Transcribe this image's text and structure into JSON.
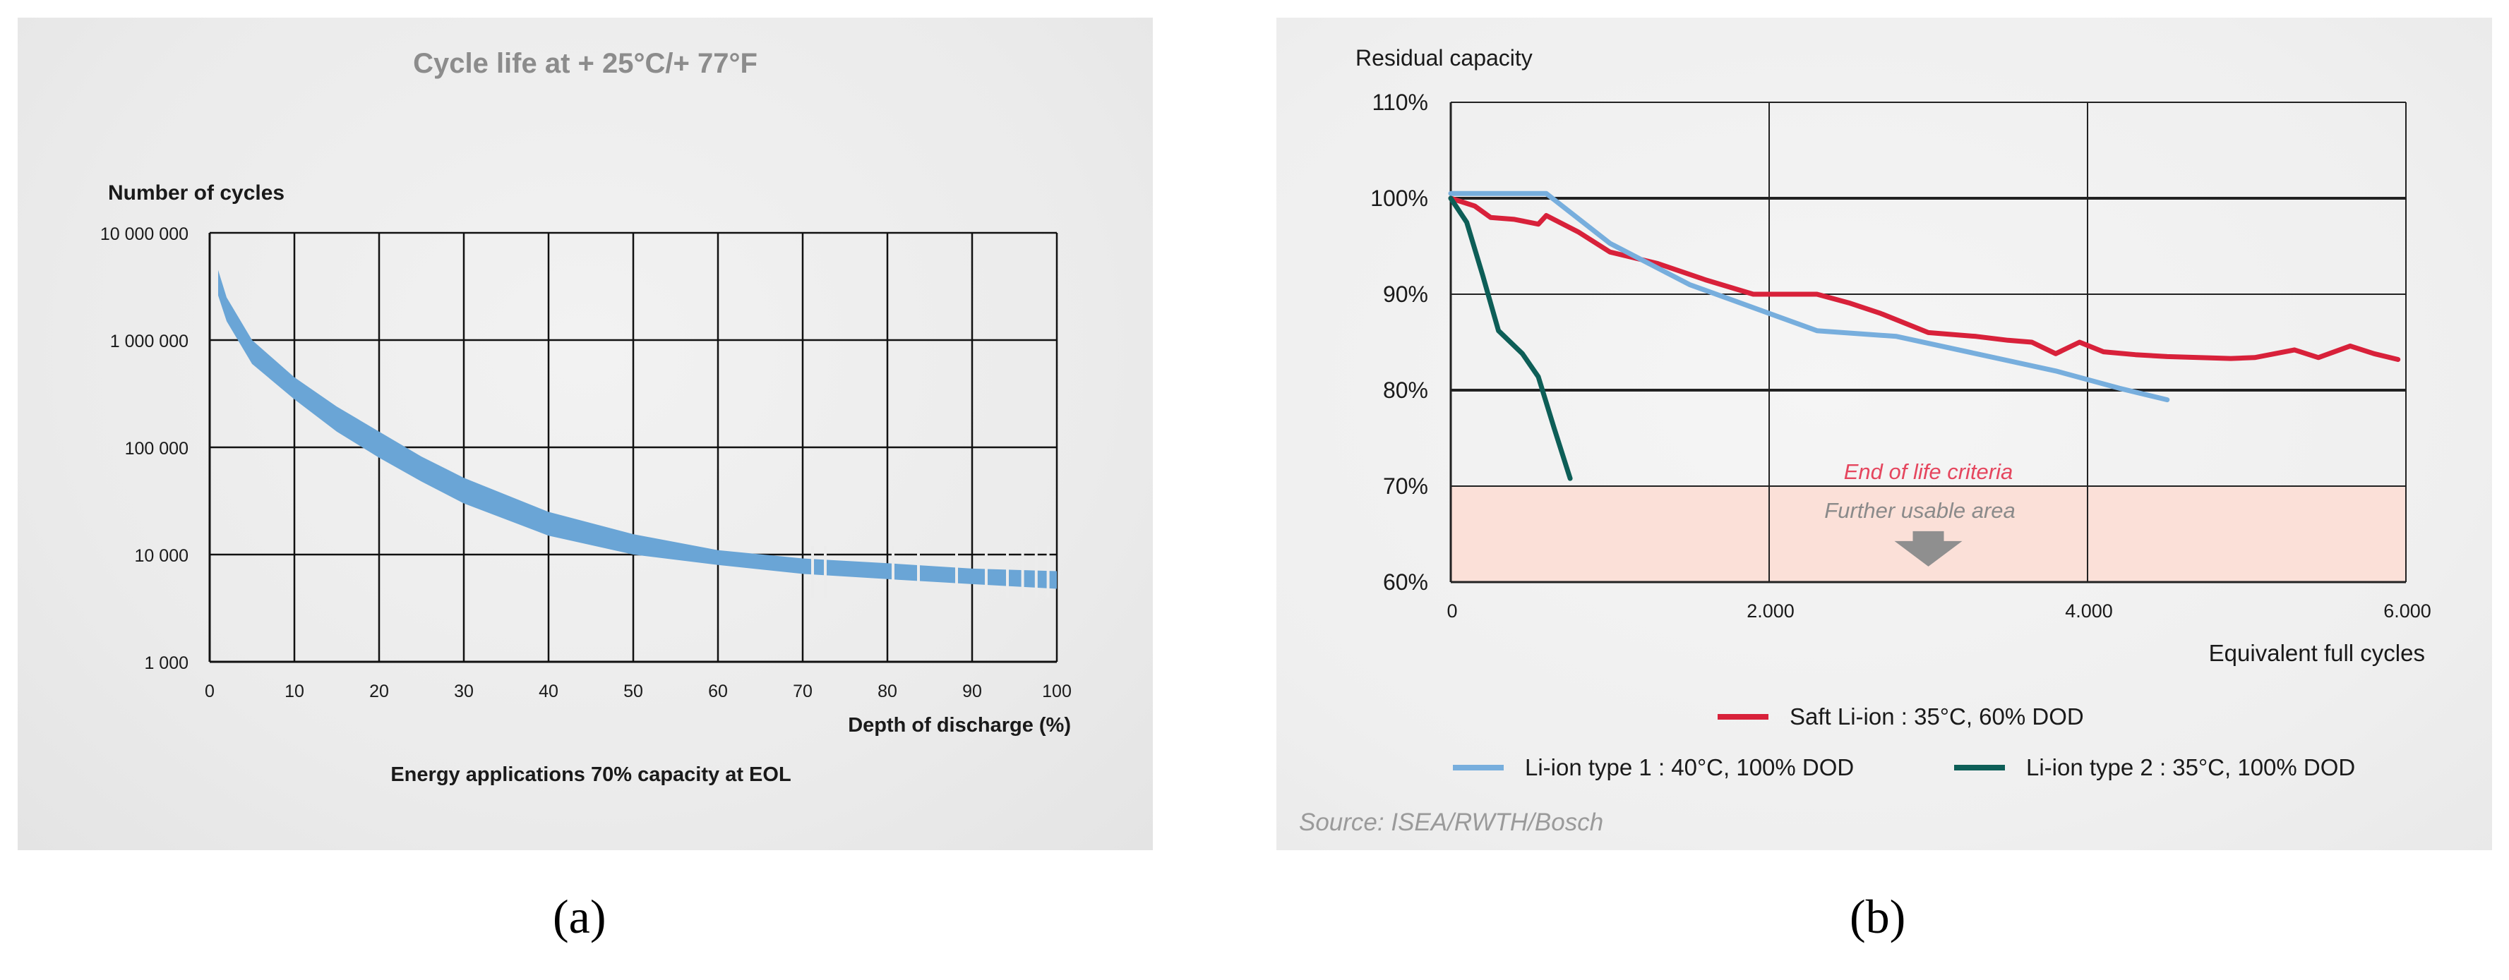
{
  "chart_data": [
    {
      "type": "area",
      "panel_label": "(a)",
      "title": "Cycle life at + 25°C/+ 77°F",
      "ylabel": "Number of cycles",
      "xlabel": "Depth of discharge (%)",
      "caption": "Energy applications 70% capacity at EOL",
      "xlim": [
        0,
        100
      ],
      "ylim": [
        1000,
        10000000
      ],
      "yscale": "log",
      "x_ticks": [
        0,
        10,
        20,
        30,
        40,
        50,
        60,
        70,
        80,
        90,
        100
      ],
      "x_tick_labels": [
        "0",
        "10",
        "20",
        "30",
        "40",
        "50",
        "60",
        "70",
        "80",
        "90",
        "100"
      ],
      "y_ticks": [
        1000,
        10000,
        100000,
        1000000,
        10000000
      ],
      "y_tick_labels": [
        "1 000",
        "10 000",
        "100 000",
        "1 000 000",
        "10 000 000"
      ],
      "grid": true,
      "color": "#6aa5d6",
      "band": {
        "x": [
          1,
          2,
          5,
          10,
          15,
          20,
          25,
          30,
          40,
          50,
          60,
          70,
          80,
          90,
          100
        ],
        "upper": [
          4500000,
          2500000,
          1000000,
          450000,
          240000,
          140000,
          82000,
          52000,
          25000,
          15500,
          11000,
          9200,
          8300,
          7400,
          7000
        ],
        "lower": [
          2600000,
          1500000,
          600000,
          280000,
          140000,
          80000,
          48000,
          30000,
          15000,
          10000,
          8000,
          6600,
          5900,
          5300,
          4800
        ]
      }
    },
    {
      "type": "line",
      "panel_label": "(b)",
      "ylabel": "Residual capacity",
      "xlabel": "Equivalent full cycles",
      "xlim": [
        0,
        6000
      ],
      "ylim": [
        60,
        110
      ],
      "x_ticks": [
        0,
        2000,
        4000,
        6000
      ],
      "x_tick_labels": [
        "0",
        "2.000",
        "4.000",
        "6.000"
      ],
      "y_ticks": [
        60,
        70,
        80,
        90,
        100,
        110
      ],
      "y_tick_labels": [
        "60%",
        "70%",
        "80%",
        "90%",
        "100%",
        "110%"
      ],
      "grid": true,
      "source": "Source: ISEA/RWTH/Bosch",
      "end_of_life": {
        "threshold": 70,
        "label": "End of life criteria",
        "area_label": "Further usable area",
        "fill": "#fbe0d8",
        "label_color": "#e5465e"
      },
      "series": [
        {
          "name": "Saft Li-ion : 35°C, 60% DOD",
          "color": "#d8213a",
          "x": [
            0,
            150,
            250,
            400,
            550,
            600,
            800,
            1000,
            1100,
            1300,
            1600,
            1900,
            2300,
            2500,
            2700,
            3000,
            3300,
            3500,
            3650,
            3800,
            3950,
            4100,
            4300,
            4500,
            4700,
            4900,
            5050,
            5300,
            5450,
            5650,
            5800,
            5950
          ],
          "y": [
            100,
            99.2,
            98,
            97.8,
            97.3,
            98.2,
            96.5,
            94.4,
            94,
            93.2,
            91.5,
            90,
            90,
            89.1,
            88,
            86,
            85.6,
            85.2,
            85,
            83.8,
            85,
            84,
            83.7,
            83.5,
            83.4,
            83.3,
            83.4,
            84.2,
            83.4,
            84.6,
            83.8,
            83.2
          ]
        },
        {
          "name": "Li-ion type 1 : 40°C, 100% DOD",
          "color": "#77aedd",
          "x": [
            0,
            600,
            1000,
            1500,
            2000,
            2300,
            2800,
            3300,
            3800,
            4200,
            4500
          ],
          "y": [
            100.5,
            100.5,
            95.3,
            91,
            88,
            86.2,
            85.6,
            83.8,
            82,
            80.2,
            79
          ]
        },
        {
          "name": "Li-ion type 2 : 35°C, 100% DOD",
          "color": "#0d5e57",
          "x": [
            0,
            100,
            200,
            300,
            450,
            550,
            650,
            750
          ],
          "y": [
            100,
            97.5,
            92,
            86.2,
            83.8,
            81.4,
            76,
            70.8
          ]
        }
      ]
    }
  ]
}
